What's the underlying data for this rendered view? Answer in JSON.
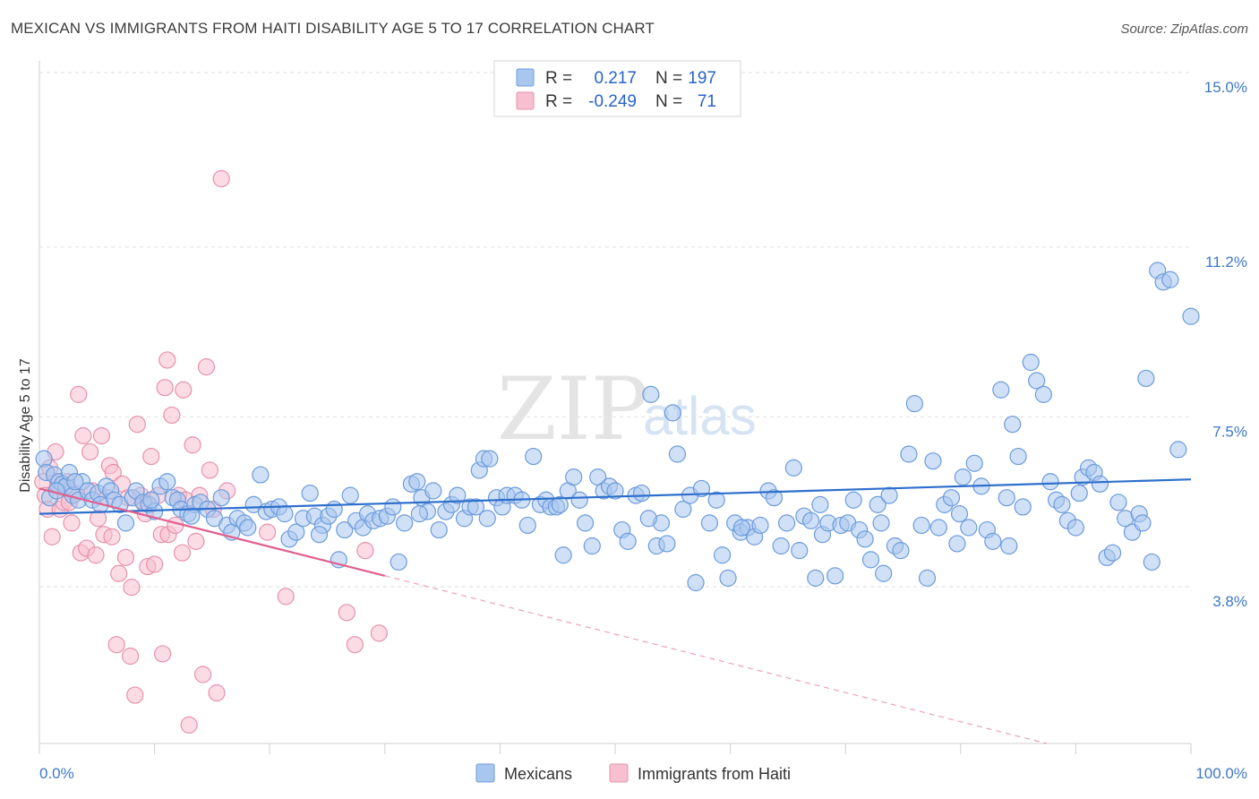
{
  "title": "MEXICAN VS IMMIGRANTS FROM HAITI DISABILITY AGE 5 TO 17 CORRELATION CHART",
  "source": "Source: ZipAtlas.com",
  "watermark": {
    "zip": "ZIP",
    "atlas": "atlas"
  },
  "legend_top": {
    "rows": [
      {
        "r_label": "R =",
        "r_value": "0.217",
        "n_label": "N =",
        "n_value": "197"
      },
      {
        "r_label": "R =",
        "r_value": "-0.249",
        "n_label": "N =",
        "n_value": "71"
      }
    ]
  },
  "chart_data": {
    "type": "scatter",
    "title": "MEXICAN VS IMMIGRANTS FROM HAITI DISABILITY AGE 5 TO 17 CORRELATION CHART",
    "xlabel": "",
    "ylabel": "Disability Age 5 to 17",
    "xlim": [
      0,
      100
    ],
    "ylim": [
      0.9,
      15.5
    ],
    "x_tick_labels": [
      "0.0%",
      "100.0%"
    ],
    "y_ticks": [
      3.8,
      7.5,
      11.2,
      15.0
    ],
    "y_tick_labels": [
      "3.8%",
      "7.5%",
      "11.2%",
      "15.0%"
    ],
    "grid": true,
    "legend_placement": "top-center",
    "colors": {
      "mexicans_fill": "#a9c7ee",
      "mexicans_stroke": "#6a9bdc",
      "mexicans_line": "#2e6fcc",
      "haiti_fill": "#f7bfd0",
      "haiti_stroke": "#e690ad",
      "haiti_line": "#e0608e"
    },
    "series": [
      {
        "name": "Mexicans",
        "r": 0.217,
        "n": 197,
        "trend": {
          "x": [
            0,
            100
          ],
          "y": [
            5.7,
            6.45
          ]
        },
        "points": [
          [
            0.4,
            6.9
          ],
          [
            0.6,
            6.6
          ],
          [
            1.3,
            6.55
          ],
          [
            1.7,
            6.4
          ],
          [
            2.0,
            6.35
          ],
          [
            2.3,
            6.3
          ],
          [
            2.6,
            6.6
          ],
          [
            2.9,
            6.1
          ],
          [
            3.4,
            6.0
          ],
          [
            3.7,
            6.4
          ],
          [
            4.2,
            6.2
          ],
          [
            4.6,
            6.0
          ],
          [
            5.1,
            6.15
          ],
          [
            5.8,
            6.3
          ],
          [
            6.2,
            6.2
          ],
          [
            6.5,
            6.0
          ],
          [
            7.0,
            5.9
          ],
          [
            7.5,
            5.5
          ],
          [
            8.1,
            6.05
          ],
          [
            8.4,
            6.2
          ],
          [
            9.0,
            5.95
          ],
          [
            9.5,
            5.9
          ],
          [
            10.0,
            5.75
          ],
          [
            10.5,
            6.3
          ],
          [
            11.1,
            6.4
          ],
          [
            11.6,
            6.05
          ],
          [
            12.0,
            6.0
          ],
          [
            12.3,
            5.8
          ],
          [
            12.9,
            5.7
          ],
          [
            13.5,
            5.9
          ],
          [
            14.0,
            5.95
          ],
          [
            14.6,
            5.8
          ],
          [
            15.2,
            5.6
          ],
          [
            15.8,
            6.05
          ],
          [
            16.3,
            5.45
          ],
          [
            16.7,
            5.3
          ],
          [
            17.2,
            5.6
          ],
          [
            17.8,
            5.5
          ],
          [
            18.6,
            5.9
          ],
          [
            19.2,
            6.55
          ],
          [
            19.7,
            5.75
          ],
          [
            20.2,
            5.8
          ],
          [
            20.8,
            5.85
          ],
          [
            21.3,
            5.7
          ],
          [
            21.7,
            5.15
          ],
          [
            22.3,
            5.3
          ],
          [
            22.9,
            5.6
          ],
          [
            23.5,
            6.15
          ],
          [
            23.9,
            5.65
          ],
          [
            24.6,
            5.45
          ],
          [
            25.1,
            5.65
          ],
          [
            25.6,
            5.8
          ],
          [
            26.0,
            4.7
          ],
          [
            26.5,
            5.35
          ],
          [
            27.0,
            6.1
          ],
          [
            27.5,
            5.55
          ],
          [
            28.1,
            5.4
          ],
          [
            28.5,
            5.7
          ],
          [
            29.0,
            5.55
          ],
          [
            29.6,
            5.6
          ],
          [
            30.2,
            5.65
          ],
          [
            30.7,
            5.85
          ],
          [
            31.2,
            4.65
          ],
          [
            31.7,
            5.5
          ],
          [
            32.3,
            6.35
          ],
          [
            32.8,
            6.4
          ],
          [
            33.2,
            6.05
          ],
          [
            33.7,
            5.75
          ],
          [
            34.2,
            6.2
          ],
          [
            34.7,
            5.35
          ],
          [
            35.3,
            5.75
          ],
          [
            35.8,
            5.9
          ],
          [
            36.3,
            6.1
          ],
          [
            36.9,
            5.6
          ],
          [
            37.4,
            5.85
          ],
          [
            37.9,
            5.85
          ],
          [
            38.2,
            6.65
          ],
          [
            38.6,
            6.9
          ],
          [
            39.1,
            6.9
          ],
          [
            39.7,
            6.05
          ],
          [
            40.2,
            5.85
          ],
          [
            40.6,
            6.1
          ],
          [
            41.3,
            6.1
          ],
          [
            41.9,
            6.0
          ],
          [
            42.4,
            5.45
          ],
          [
            42.9,
            6.95
          ],
          [
            43.5,
            5.9
          ],
          [
            44.0,
            6.0
          ],
          [
            44.4,
            5.85
          ],
          [
            44.9,
            5.85
          ],
          [
            45.5,
            4.8
          ],
          [
            45.9,
            6.2
          ],
          [
            46.4,
            6.5
          ],
          [
            46.9,
            6.0
          ],
          [
            47.4,
            5.5
          ],
          [
            48.0,
            5.0
          ],
          [
            48.5,
            6.5
          ],
          [
            49.0,
            6.2
          ],
          [
            49.5,
            6.3
          ],
          [
            50.0,
            6.2
          ],
          [
            50.6,
            5.35
          ],
          [
            51.1,
            5.1
          ],
          [
            51.8,
            6.1
          ],
          [
            52.3,
            6.15
          ],
          [
            53.1,
            8.3
          ],
          [
            53.6,
            5.0
          ],
          [
            54.0,
            5.5
          ],
          [
            54.5,
            5.05
          ],
          [
            55.0,
            7.9
          ],
          [
            55.4,
            7.0
          ],
          [
            55.9,
            5.8
          ],
          [
            56.5,
            6.1
          ],
          [
            57.0,
            4.2
          ],
          [
            57.5,
            6.25
          ],
          [
            58.2,
            5.5
          ],
          [
            58.8,
            6.0
          ],
          [
            59.3,
            4.8
          ],
          [
            59.8,
            4.3
          ],
          [
            60.4,
            5.5
          ],
          [
            60.9,
            5.3
          ],
          [
            61.5,
            5.4
          ],
          [
            62.1,
            5.2
          ],
          [
            62.6,
            5.45
          ],
          [
            63.3,
            6.2
          ],
          [
            63.8,
            6.05
          ],
          [
            64.4,
            5.0
          ],
          [
            64.9,
            5.5
          ],
          [
            65.5,
            6.7
          ],
          [
            66.0,
            4.9
          ],
          [
            66.4,
            5.65
          ],
          [
            67.0,
            5.55
          ],
          [
            67.4,
            4.3
          ],
          [
            68.0,
            5.25
          ],
          [
            68.5,
            5.5
          ],
          [
            69.1,
            4.35
          ],
          [
            69.6,
            5.45
          ],
          [
            70.2,
            5.5
          ],
          [
            70.7,
            6.0
          ],
          [
            71.2,
            5.35
          ],
          [
            71.7,
            5.15
          ],
          [
            72.2,
            4.7
          ],
          [
            72.8,
            5.9
          ],
          [
            73.3,
            4.4
          ],
          [
            73.8,
            6.1
          ],
          [
            74.3,
            5.0
          ],
          [
            74.8,
            4.9
          ],
          [
            75.5,
            7.0
          ],
          [
            76.0,
            8.1
          ],
          [
            76.6,
            5.45
          ],
          [
            77.1,
            4.3
          ],
          [
            77.6,
            6.85
          ],
          [
            78.1,
            5.4
          ],
          [
            78.6,
            5.9
          ],
          [
            79.2,
            6.05
          ],
          [
            79.7,
            5.05
          ],
          [
            80.2,
            6.5
          ],
          [
            80.7,
            5.4
          ],
          [
            81.2,
            6.8
          ],
          [
            81.8,
            6.3
          ],
          [
            82.3,
            5.35
          ],
          [
            82.8,
            5.1
          ],
          [
            83.5,
            8.4
          ],
          [
            84.0,
            6.05
          ],
          [
            84.5,
            7.65
          ],
          [
            85.0,
            6.95
          ],
          [
            85.4,
            5.85
          ],
          [
            86.1,
            9.0
          ],
          [
            86.6,
            8.6
          ],
          [
            87.2,
            8.3
          ],
          [
            87.8,
            6.4
          ],
          [
            88.3,
            6.0
          ],
          [
            88.8,
            5.9
          ],
          [
            89.3,
            5.55
          ],
          [
            90.0,
            5.4
          ],
          [
            90.6,
            6.5
          ],
          [
            91.1,
            6.7
          ],
          [
            91.6,
            6.6
          ],
          [
            92.1,
            6.35
          ],
          [
            92.7,
            4.75
          ],
          [
            93.2,
            4.85
          ],
          [
            93.7,
            5.95
          ],
          [
            94.3,
            5.6
          ],
          [
            94.9,
            5.3
          ],
          [
            95.5,
            5.7
          ],
          [
            96.1,
            8.65
          ],
          [
            96.6,
            4.65
          ],
          [
            97.1,
            11.0
          ],
          [
            97.6,
            10.75
          ],
          [
            98.2,
            10.8
          ],
          [
            98.9,
            7.1
          ],
          [
            100.0,
            10.0
          ],
          [
            0.9,
            6.05
          ],
          [
            1.5,
            6.2
          ],
          [
            3.1,
            6.4
          ],
          [
            5.3,
            5.9
          ],
          [
            9.7,
            6.0
          ],
          [
            13.2,
            5.65
          ],
          [
            18.1,
            5.4
          ],
          [
            24.3,
            5.25
          ],
          [
            33.0,
            5.7
          ],
          [
            38.9,
            5.6
          ],
          [
            45.2,
            5.9
          ],
          [
            52.9,
            5.6
          ],
          [
            61.0,
            5.4
          ],
          [
            67.8,
            5.9
          ],
          [
            73.1,
            5.5
          ],
          [
            79.9,
            5.7
          ],
          [
            84.2,
            5.0
          ],
          [
            90.3,
            6.15
          ],
          [
            95.8,
            5.5
          ]
        ]
      },
      {
        "name": "Immigrants from Haiti",
        "r": -0.249,
        "n": 71,
        "trend": {
          "solid_x": [
            0,
            30
          ],
          "solid_y": [
            6.25,
            4.35
          ],
          "dashed_x": [
            30,
            100
          ],
          "dashed_y": [
            4.35,
            -0.1
          ]
        },
        "points": [
          [
            0.3,
            6.4
          ],
          [
            0.5,
            6.1
          ],
          [
            0.7,
            5.8
          ],
          [
            0.9,
            6.7
          ],
          [
            1.1,
            5.2
          ],
          [
            1.4,
            7.05
          ],
          [
            1.6,
            6.35
          ],
          [
            1.8,
            5.8
          ],
          [
            2.1,
            5.95
          ],
          [
            2.4,
            6.4
          ],
          [
            2.6,
            5.95
          ],
          [
            2.8,
            5.5
          ],
          [
            3.1,
            6.15
          ],
          [
            3.4,
            8.3
          ],
          [
            3.6,
            4.85
          ],
          [
            3.8,
            7.4
          ],
          [
            4.1,
            4.95
          ],
          [
            4.4,
            7.05
          ],
          [
            4.6,
            6.2
          ],
          [
            4.9,
            4.8
          ],
          [
            5.1,
            5.6
          ],
          [
            5.4,
            7.4
          ],
          [
            5.6,
            5.25
          ],
          [
            5.9,
            6.05
          ],
          [
            6.1,
            6.75
          ],
          [
            6.4,
            6.6
          ],
          [
            6.7,
            2.85
          ],
          [
            6.9,
            4.4
          ],
          [
            7.2,
            6.35
          ],
          [
            7.5,
            4.75
          ],
          [
            7.7,
            6.05
          ],
          [
            8.0,
            4.1
          ],
          [
            8.3,
            1.75
          ],
          [
            8.5,
            7.65
          ],
          [
            8.8,
            6.1
          ],
          [
            9.1,
            5.95
          ],
          [
            9.4,
            4.55
          ],
          [
            9.7,
            6.95
          ],
          [
            10.0,
            4.6
          ],
          [
            10.3,
            6.1
          ],
          [
            10.6,
            5.25
          ],
          [
            10.9,
            8.45
          ],
          [
            11.2,
            5.25
          ],
          [
            11.5,
            7.85
          ],
          [
            11.8,
            5.45
          ],
          [
            12.1,
            6.1
          ],
          [
            12.4,
            4.85
          ],
          [
            12.7,
            6.0
          ],
          [
            13.0,
            1.1
          ],
          [
            13.3,
            7.2
          ],
          [
            13.6,
            5.1
          ],
          [
            13.9,
            6.1
          ],
          [
            14.2,
            2.2
          ],
          [
            14.5,
            8.9
          ],
          [
            14.8,
            6.65
          ],
          [
            15.1,
            5.8
          ],
          [
            15.4,
            1.8
          ],
          [
            15.8,
            13.0
          ],
          [
            16.3,
            6.2
          ],
          [
            19.8,
            5.3
          ],
          [
            21.4,
            3.9
          ],
          [
            26.7,
            3.55
          ],
          [
            27.4,
            2.85
          ],
          [
            28.3,
            4.9
          ],
          [
            29.5,
            3.1
          ],
          [
            10.7,
            2.65
          ],
          [
            11.1,
            9.05
          ],
          [
            12.5,
            8.4
          ],
          [
            7.9,
            2.6
          ],
          [
            9.2,
            5.7
          ],
          [
            6.3,
            5.2
          ]
        ]
      }
    ]
  },
  "bottom_legend": [
    {
      "label": "Mexicans"
    },
    {
      "label": "Immigrants from Haiti"
    }
  ]
}
